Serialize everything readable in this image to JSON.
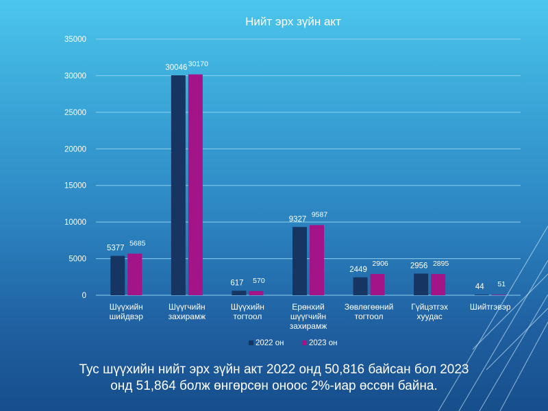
{
  "colors": {
    "series_2022": "#163562",
    "series_2023": "#a31489",
    "gridline": "#8fd0ee",
    "text": "#ffffff"
  },
  "chart_data": {
    "type": "bar",
    "title": "Нийт эрх зүйн акт",
    "categories": [
      [
        "Шүүхийн",
        "шийдвэр"
      ],
      [
        "Шүүгчийн",
        "захирамж"
      ],
      [
        "Шүүхийн",
        "тогтоол"
      ],
      [
        "Ерөнхий",
        "шүүгчийн",
        "захирамж"
      ],
      [
        "Зөвлөгөөний",
        "тогтоол"
      ],
      [
        "Гүйцэтгэх",
        "хуудас"
      ],
      [
        "Шийтгэвэр"
      ]
    ],
    "series": [
      {
        "name": "2022 он",
        "values": [
          5377,
          30046,
          617,
          9327,
          2449,
          2956,
          44
        ]
      },
      {
        "name": "2023 он",
        "values": [
          5685,
          30170,
          570,
          9587,
          2906,
          2895,
          51
        ]
      }
    ],
    "ylim": [
      0,
      35000
    ],
    "yticks": [
      0,
      5000,
      10000,
      15000,
      20000,
      25000,
      30000,
      35000
    ],
    "grid": true,
    "legend": "bottom",
    "xlabel": "",
    "ylabel": ""
  },
  "caption": {
    "line1": "Тус шүүхийн нийт эрх зүйн акт 2022 онд 50,816 байсан бол 2023",
    "line2": "онд 51,864 болж өнгөрсөн оноос 2%-иар өссөн байна."
  }
}
